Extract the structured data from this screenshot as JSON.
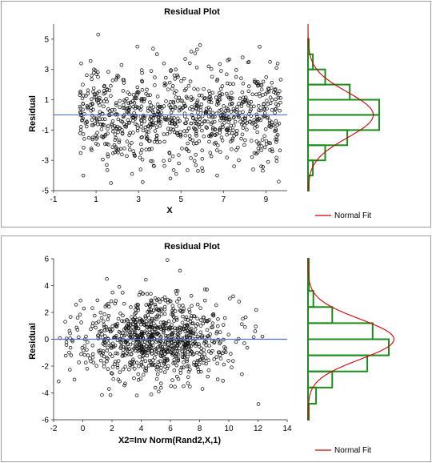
{
  "chart_data": [
    {
      "type": "scatter",
      "title": "Residual Plot",
      "xlabel": "X",
      "ylabel": "Residual",
      "xlim": [
        -1,
        10
      ],
      "ylim": [
        -5,
        6
      ],
      "x_ticks": [
        -1,
        1,
        3,
        5,
        7,
        9
      ],
      "y_ticks": [
        -5,
        -3,
        -1,
        1,
        3,
        5
      ],
      "reference_line_y": 0,
      "grid": false,
      "marker": "open-circle",
      "series": [
        {
          "points": [
            [
              1.1,
              5.3
            ],
            [
              8.7,
              4.5
            ],
            [
              1.7,
              -4.5
            ],
            [
              9.6,
              -4.4
            ],
            [
              4.5,
              -4.2
            ],
            [
              6.7,
              -4.0
            ],
            [
              2.2,
              3.3
            ],
            [
              4.2,
              3.4
            ],
            [
              5.2,
              3.7
            ],
            [
              7.2,
              3.6
            ],
            [
              8.2,
              3.5
            ],
            [
              0.3,
              3.4
            ],
            [
              3.1,
              -3.6
            ],
            [
              5.8,
              -3.7
            ],
            [
              2.7,
              -3.9
            ],
            [
              8.4,
              -3.6
            ],
            [
              0.9,
              3.0
            ],
            [
              6.3,
              3.2
            ],
            [
              7.9,
              3.8
            ],
            [
              9.5,
              3.1
            ],
            [
              3.6,
              2.9
            ],
            [
              1.5,
              -3.3
            ],
            [
              4.9,
              -3.2
            ],
            [
              7.5,
              -3.4
            ],
            [
              9.1,
              -3.1
            ],
            [
              2.0,
              2.6
            ],
            [
              6.0,
              -2.9
            ]
          ],
          "density_note": "about 900 residual points spread over x = 0 to 10, roughly normal around 0 with SD near 1.5"
        }
      ],
      "side_histogram": {
        "bins": [
          -5.0,
          -4.0,
          -3.0,
          -2.0,
          -1.0,
          0.0,
          1.0,
          2.0,
          3.0,
          4.0,
          5.0
        ],
        "frequencies": [
          0.003,
          0.02,
          0.07,
          0.16,
          0.29,
          0.29,
          0.17,
          0.07,
          0.02,
          0.003
        ],
        "bar_color": "#1a8c1a",
        "fit_curve": {
          "mean": 0.0,
          "sd": 1.5,
          "color": "#cc0000"
        }
      },
      "legend": {
        "label": "Normal Fit",
        "color": "#cc0000",
        "position": "bottom-right"
      }
    },
    {
      "type": "scatter",
      "title": "Residual Plot",
      "xlabel": "X2=Inv Norm(Rand2,X,1)",
      "ylabel": "Residual",
      "xlim": [
        -2,
        14
      ],
      "ylim": [
        -6,
        6
      ],
      "x_ticks": [
        -2,
        0,
        2,
        4,
        6,
        8,
        10,
        12,
        14
      ],
      "y_ticks": [
        -6,
        -4,
        -2,
        0,
        2,
        4,
        6
      ],
      "reference_line_y": 0,
      "grid": false,
      "marker": "open-circle",
      "series": [
        {
          "points": [
            [
              5.8,
              5.9
            ],
            [
              2.5,
              3.9
            ],
            [
              6.5,
              3.6
            ],
            [
              4.1,
              3.4
            ],
            [
              8.5,
              3.7
            ],
            [
              10.3,
              3.2
            ],
            [
              1.0,
              2.9
            ],
            [
              -1.2,
              1.3
            ],
            [
              11.8,
              0.6
            ],
            [
              12.3,
              0.2
            ],
            [
              -0.8,
              -1.2
            ],
            [
              0.3,
              -2.2
            ],
            [
              3.7,
              -4.2
            ],
            [
              8.2,
              -3.7
            ],
            [
              5.2,
              -3.9
            ],
            [
              1.8,
              -3.7
            ],
            [
              9.6,
              -3.1
            ],
            [
              10.9,
              -2.6
            ],
            [
              6.9,
              -3.5
            ],
            [
              2.9,
              -3.3
            ],
            [
              4.7,
              2.9
            ]
          ],
          "density_note": "about 900 residual points, x concentrated between 0 and 11 (roughly normal around 5), y roughly normal around 0 with SD near 1.5"
        }
      ],
      "side_histogram": {
        "bins": [
          -6.0,
          -4.8,
          -3.6,
          -2.4,
          -1.2,
          0.0,
          1.2,
          2.4,
          3.6,
          4.8,
          6.0
        ],
        "frequencies": [
          0.003,
          0.03,
          0.09,
          0.22,
          0.3,
          0.24,
          0.09,
          0.02,
          0.003,
          0.003
        ],
        "bar_color": "#1a8c1a",
        "fit_curve": {
          "mean": 0.0,
          "sd": 1.5,
          "color": "#cc0000"
        }
      },
      "legend": {
        "label": "Normal Fit",
        "color": "#cc0000",
        "position": "bottom-right"
      }
    }
  ]
}
